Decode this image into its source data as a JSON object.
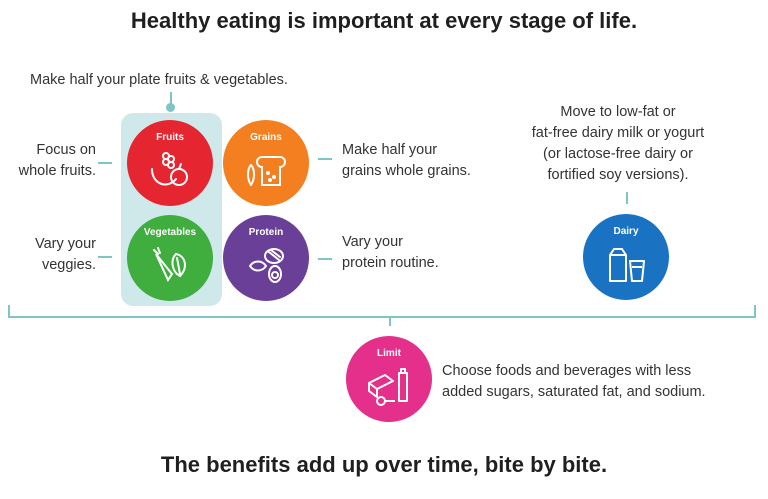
{
  "title": "Healthy eating is important at every stage of life.",
  "plate_note": "Make half your plate fruits & vegetables.",
  "groups": {
    "fruits": {
      "label": "Fruits",
      "text_lines": [
        "Focus on",
        "whole fruits."
      ],
      "color": "#e52530"
    },
    "grains": {
      "label": "Grains",
      "text_lines": [
        "Make half your",
        "grains whole grains."
      ],
      "color": "#f37f20"
    },
    "vegetables": {
      "label": "Vegetables",
      "text_lines": [
        "Vary your",
        "veggies."
      ],
      "color": "#3fae3e"
    },
    "protein": {
      "label": "Protein",
      "text_lines": [
        "Vary your",
        "protein routine."
      ],
      "color": "#6a3f97"
    },
    "dairy": {
      "label": "Dairy",
      "text_lines": [
        "Move to low-fat or",
        "fat-free dairy milk or yogurt",
        "(or lactose-free dairy or",
        "fortified soy versions)."
      ],
      "color": "#1a73c2"
    },
    "limit": {
      "label": "Limit",
      "text_lines": [
        "Choose foods and beverages with less",
        "added sugars, saturated fat, and sodium."
      ],
      "color": "#e5308b"
    }
  },
  "footer": "The benefits add up over time, bite by bite.",
  "accent_line_color": "#7fc4c6",
  "plate_bg_color": "#cfe9ea",
  "icons": [
    "fruit-icon",
    "bread-icon",
    "veggies-icon",
    "protein-icon",
    "dairy-icon",
    "limit-icon"
  ]
}
